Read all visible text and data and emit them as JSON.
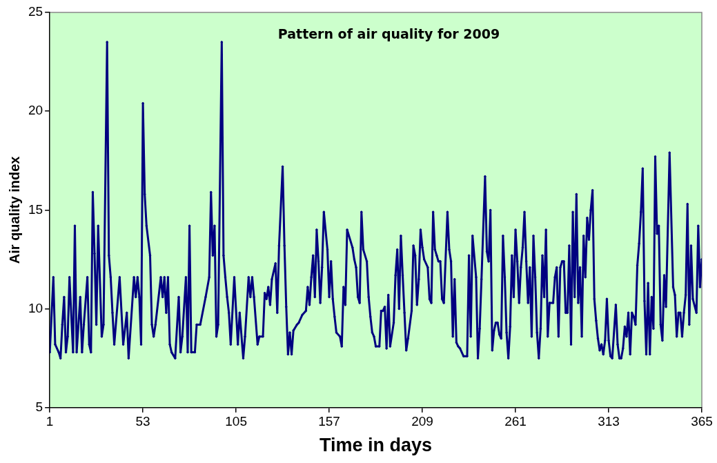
{
  "chart_data": {
    "type": "line",
    "title": "Pattern of air quality for 2009",
    "xlabel": "Time in days",
    "ylabel": "Air quality index",
    "xlim": [
      1,
      365
    ],
    "xticks": [
      1,
      53,
      105,
      157,
      209,
      261,
      313,
      365
    ],
    "ylim": [
      5,
      25
    ],
    "yticks": [
      5,
      10,
      15,
      20,
      25
    ],
    "grid": false,
    "legend": false,
    "marker": "diamond",
    "line_style": "solid",
    "series": [
      {
        "color": "#000080",
        "x": [
          1,
          3,
          4,
          6,
          7,
          8,
          9,
          10,
          11,
          12,
          14,
          15,
          16,
          18,
          19,
          20,
          22,
          23,
          24,
          25,
          26,
          27,
          28,
          30,
          31,
          33,
          34,
          35,
          36,
          37,
          40,
          42,
          44,
          45,
          48,
          49,
          50,
          51,
          52,
          53,
          54,
          55,
          57,
          58,
          59,
          60,
          63,
          64,
          65,
          66,
          67,
          68,
          69,
          71,
          73,
          74,
          75,
          77,
          78,
          79,
          80,
          82,
          83,
          85,
          88,
          90,
          91,
          92,
          93,
          94,
          95,
          97,
          98,
          99,
          100,
          101,
          102,
          104,
          106,
          107,
          109,
          110,
          112,
          113,
          114,
          115,
          117,
          118,
          120,
          121,
          122,
          123,
          124,
          125,
          127,
          128,
          129,
          131,
          132,
          133,
          134,
          135,
          136,
          137,
          139,
          140,
          142,
          144,
          145,
          146,
          147,
          148,
          149,
          150,
          151,
          152,
          153,
          154,
          156,
          157,
          158,
          159,
          160,
          161,
          163,
          164,
          165,
          166,
          167,
          170,
          171,
          172,
          173,
          174,
          175,
          176,
          178,
          179,
          180,
          181,
          182,
          183,
          185,
          186,
          187,
          188,
          189,
          190,
          191,
          193,
          194,
          195,
          196,
          197,
          198,
          199,
          200,
          201,
          203,
          204,
          205,
          206,
          207,
          208,
          209,
          210,
          212,
          213,
          214,
          215,
          216,
          217,
          218,
          219,
          220,
          221,
          223,
          224,
          225,
          226,
          227,
          228,
          229,
          230,
          232,
          234,
          235,
          236,
          237,
          239,
          240,
          241,
          242,
          244,
          245,
          246,
          247,
          248,
          249,
          250,
          251,
          252,
          253,
          254,
          255,
          256,
          257,
          258,
          259,
          260,
          261,
          262,
          263,
          264,
          265,
          266,
          267,
          268,
          269,
          270,
          271,
          272,
          273,
          274,
          275,
          276,
          277,
          278,
          279,
          280,
          282,
          283,
          284,
          285,
          286,
          287,
          288,
          289,
          290,
          291,
          292,
          293,
          294,
          295,
          296,
          297,
          298,
          299,
          300,
          301,
          302,
          303,
          304,
          305,
          306,
          307,
          308,
          309,
          310,
          311,
          312,
          313,
          314,
          315,
          317,
          318,
          319,
          320,
          321,
          322,
          323,
          324,
          325,
          326,
          327,
          328,
          329,
          330,
          331,
          332,
          333,
          334,
          335,
          336,
          337,
          338,
          339,
          340,
          341,
          342,
          343,
          344,
          345,
          347,
          349,
          350,
          351,
          352,
          353,
          354,
          355,
          356,
          357,
          358,
          359,
          360,
          362,
          363,
          364,
          365
        ],
        "values": [
          7.8,
          11.6,
          8.2,
          7.8,
          7.5,
          9.2,
          10.6,
          7.8,
          8.6,
          11.6,
          7.8,
          14.2,
          7.8,
          10.6,
          7.8,
          9.2,
          11.6,
          8.2,
          7.8,
          15.9,
          12.8,
          9.2,
          14.2,
          8.6,
          9.2,
          23.5,
          12.7,
          11.6,
          9.8,
          8.2,
          11.6,
          8.2,
          9.8,
          7.5,
          11.6,
          10.6,
          11.6,
          10.6,
          8.2,
          20.4,
          15.8,
          14.2,
          12.7,
          9.2,
          8.6,
          9.2,
          11.6,
          10.6,
          11.6,
          9.8,
          11.6,
          8.2,
          7.8,
          7.5,
          10.6,
          7.8,
          8.6,
          11.6,
          7.8,
          14.2,
          7.8,
          7.8,
          9.2,
          9.2,
          10.6,
          11.6,
          15.9,
          12.7,
          14.2,
          8.6,
          9.2,
          23.5,
          12.7,
          11.6,
          10.6,
          9.8,
          8.2,
          11.6,
          8.2,
          9.8,
          7.5,
          8.6,
          11.6,
          10.6,
          11.6,
          10.6,
          8.2,
          8.6,
          8.6,
          10.8,
          10.5,
          11.1,
          10.2,
          11.5,
          12.3,
          9.8,
          13.2,
          17.2,
          13.2,
          10.1,
          7.7,
          8.8,
          7.7,
          8.9,
          9.2,
          9.3,
          9.7,
          9.9,
          11.1,
          10.2,
          11.6,
          12.7,
          10.6,
          14.0,
          12.4,
          10.3,
          12.1,
          14.9,
          13.0,
          10.6,
          12.4,
          10.5,
          9.6,
          8.8,
          8.6,
          8.1,
          11.1,
          10.2,
          14.0,
          13.1,
          12.5,
          12.1,
          10.6,
          10.3,
          14.9,
          13.0,
          12.4,
          10.6,
          9.6,
          8.8,
          8.6,
          8.1,
          8.1,
          9.9,
          9.9,
          10.1,
          8.0,
          10.7,
          8.1,
          9.3,
          11.7,
          13.0,
          10.0,
          13.7,
          11.7,
          9.8,
          7.9,
          8.5,
          9.9,
          13.2,
          12.7,
          10.2,
          11.5,
          14.0,
          13.1,
          12.5,
          12.1,
          10.5,
          10.3,
          14.9,
          13.0,
          12.7,
          12.4,
          12.4,
          10.5,
          10.3,
          14.9,
          13.0,
          12.4,
          8.6,
          11.5,
          8.3,
          8.1,
          8.0,
          7.6,
          7.6,
          12.7,
          8.6,
          13.7,
          11.6,
          7.5,
          9.0,
          11.5,
          16.7,
          12.9,
          12.4,
          15.0,
          7.9,
          8.9,
          9.3,
          9.3,
          8.7,
          8.5,
          13.7,
          11.6,
          8.8,
          7.5,
          9.1,
          12.7,
          10.6,
          14.0,
          12.4,
          10.3,
          12.1,
          13.1,
          14.9,
          12.4,
          10.3,
          12.1,
          8.6,
          13.7,
          11.6,
          8.8,
          7.5,
          9.0,
          12.7,
          10.6,
          14.0,
          8.6,
          10.3,
          10.3,
          11.6,
          12.1,
          8.6,
          12.1,
          12.4,
          12.4,
          9.8,
          9.8,
          13.2,
          8.2,
          14.9,
          10.6,
          15.8,
          10.3,
          12.1,
          8.6,
          13.7,
          11.6,
          14.6,
          13.5,
          15.0,
          16.0,
          10.5,
          9.4,
          8.5,
          7.9,
          8.2,
          7.7,
          8.4,
          10.5,
          8.4,
          7.6,
          7.5,
          10.2,
          8.2,
          7.5,
          7.5,
          8.0,
          9.1,
          8.6,
          9.8,
          7.7,
          9.8,
          9.6,
          9.2,
          12.2,
          13.3,
          14.9,
          17.1,
          10.4,
          7.7,
          11.3,
          7.7,
          10.6,
          9.0,
          17.7,
          13.8,
          14.2,
          9.2,
          8.4,
          11.7,
          10.1,
          17.9,
          11.1,
          10.7,
          8.6,
          9.8,
          9.8,
          8.6,
          9.8,
          10.7,
          15.3,
          9.2,
          13.2,
          10.5,
          9.8,
          14.2,
          11.1,
          12.5
        ]
      }
    ]
  }
}
